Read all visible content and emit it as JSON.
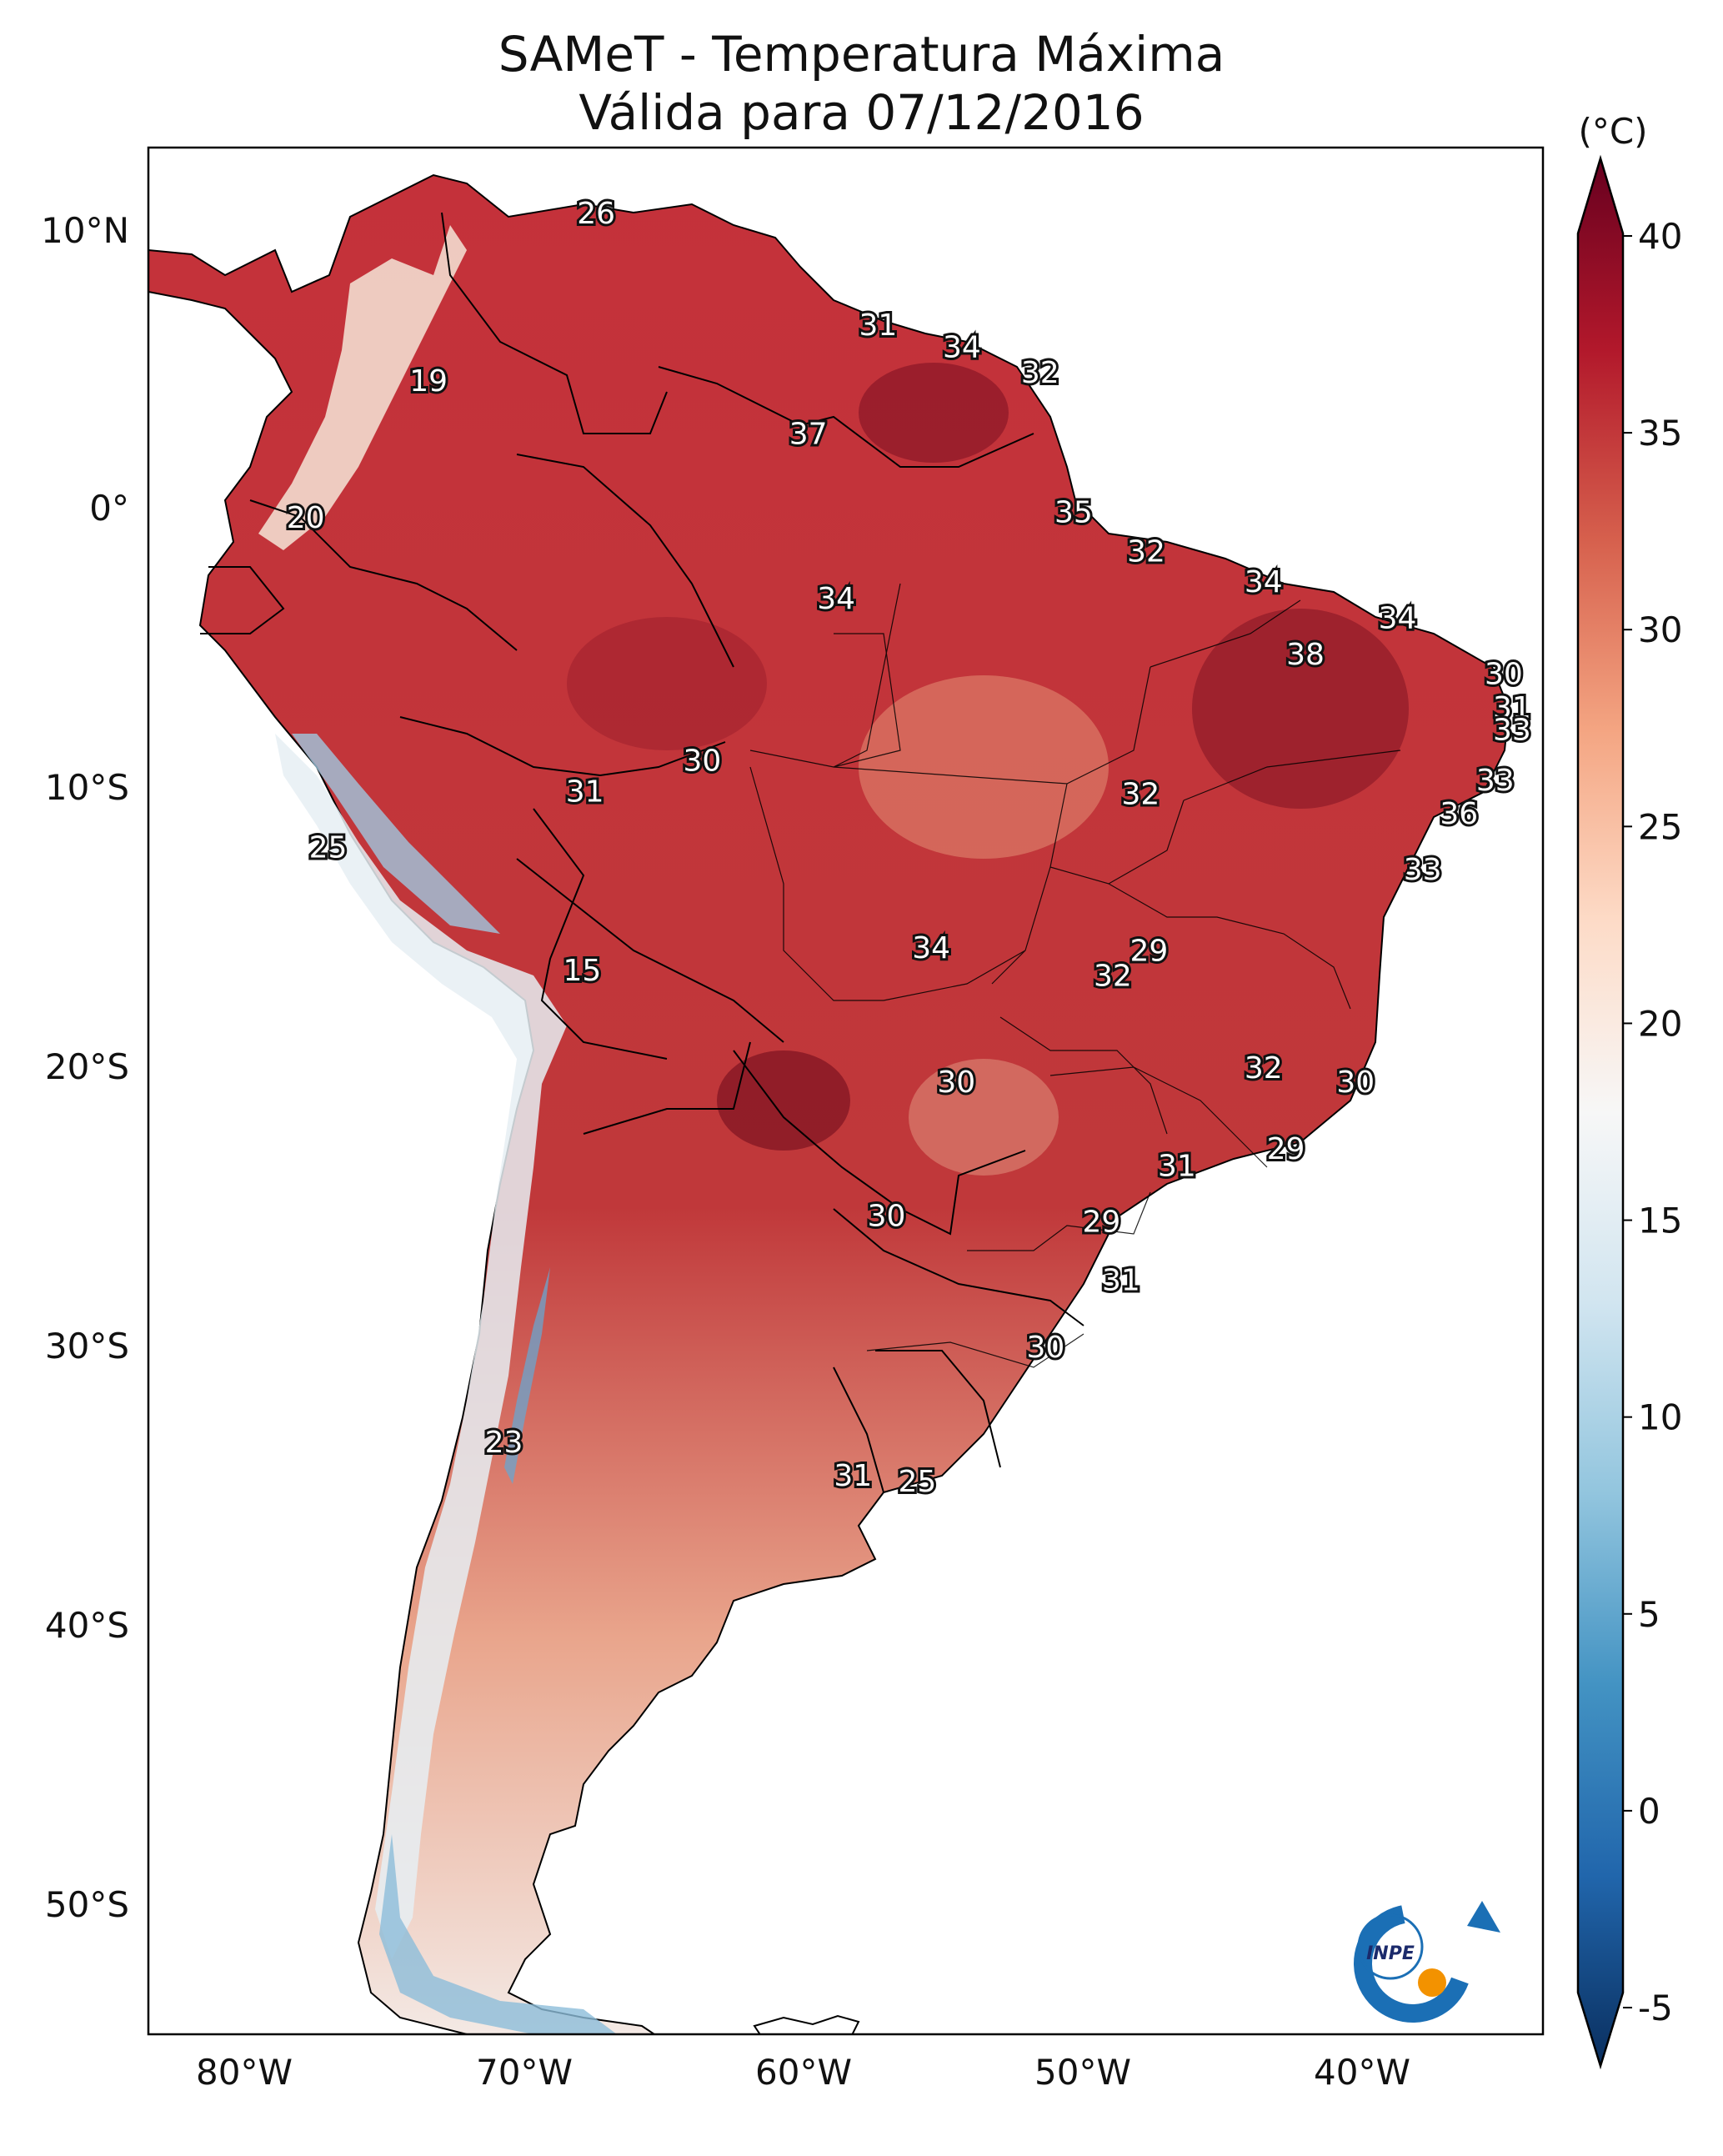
{
  "title": {
    "line1": "SAMeT - Temperatura Máxima",
    "line2": "Válida para 07/12/2016"
  },
  "map": {
    "lat_ticks": [
      "10°N",
      "0°",
      "10°S",
      "20°S",
      "30°S",
      "40°S",
      "50°S"
    ],
    "lon_ticks": [
      "80°W",
      "70°W",
      "60°W",
      "50°W",
      "40°W"
    ],
    "values": [
      {
        "label": "26",
        "lon": -67.4,
        "lat": 10.6
      },
      {
        "label": "19",
        "lon": -73.4,
        "lat": 4.6
      },
      {
        "label": "31",
        "lon": -57.3,
        "lat": 6.6
      },
      {
        "label": "34",
        "lon": -54.3,
        "lat": 5.8
      },
      {
        "label": "32",
        "lon": -51.5,
        "lat": 4.9
      },
      {
        "label": "37",
        "lon": -59.8,
        "lat": 2.7
      },
      {
        "label": "20",
        "lon": -77.8,
        "lat": -0.3
      },
      {
        "label": "35",
        "lon": -50.3,
        "lat": -0.1
      },
      {
        "label": "32",
        "lon": -47.7,
        "lat": -1.5
      },
      {
        "label": "34",
        "lon": -43.5,
        "lat": -2.6
      },
      {
        "label": "34",
        "lon": -58.8,
        "lat": -3.2
      },
      {
        "label": "34",
        "lon": -38.7,
        "lat": -3.9
      },
      {
        "label": "38",
        "lon": -42.0,
        "lat": -5.2
      },
      {
        "label": "30",
        "lon": -34.9,
        "lat": -5.9
      },
      {
        "label": "31",
        "lon": -34.6,
        "lat": -7.1
      },
      {
        "label": "33",
        "lon": -34.6,
        "lat": -7.9
      },
      {
        "label": "30",
        "lon": -63.6,
        "lat": -9.0
      },
      {
        "label": "31",
        "lon": -67.8,
        "lat": -10.1
      },
      {
        "label": "32",
        "lon": -47.9,
        "lat": -10.2
      },
      {
        "label": "33",
        "lon": -35.2,
        "lat": -9.7
      },
      {
        "label": "36",
        "lon": -36.5,
        "lat": -10.9
      },
      {
        "label": "25",
        "lon": -77.0,
        "lat": -12.1
      },
      {
        "label": "33",
        "lon": -37.8,
        "lat": -12.9
      },
      {
        "label": "34",
        "lon": -55.4,
        "lat": -15.7
      },
      {
        "label": "29",
        "lon": -47.6,
        "lat": -15.8
      },
      {
        "label": "32",
        "lon": -48.9,
        "lat": -16.7
      },
      {
        "label": "15",
        "lon": -67.9,
        "lat": -16.5
      },
      {
        "label": "32",
        "lon": -43.5,
        "lat": -20.0
      },
      {
        "label": "30",
        "lon": -54.5,
        "lat": -20.5
      },
      {
        "label": "30",
        "lon": -40.2,
        "lat": -20.5
      },
      {
        "label": "29",
        "lon": -42.7,
        "lat": -22.9
      },
      {
        "label": "31",
        "lon": -46.6,
        "lat": -23.5
      },
      {
        "label": "30",
        "lon": -57.0,
        "lat": -25.3
      },
      {
        "label": "29",
        "lon": -49.3,
        "lat": -25.5
      },
      {
        "label": "31",
        "lon": -48.6,
        "lat": -27.6
      },
      {
        "label": "30",
        "lon": -51.3,
        "lat": -30.0
      },
      {
        "label": "23",
        "lon": -70.7,
        "lat": -33.4
      },
      {
        "label": "31",
        "lon": -58.2,
        "lat": -34.6
      },
      {
        "label": "25",
        "lon": -55.9,
        "lat": -34.8
      }
    ]
  },
  "colorbar": {
    "unit": "(°C)",
    "ticks": [
      "40",
      "35",
      "30",
      "25",
      "20",
      "15",
      "10",
      "5",
      "0",
      "-5"
    ],
    "tick_values": [
      40,
      35,
      30,
      25,
      20,
      15,
      10,
      5,
      0,
      -5
    ],
    "range": [
      -5,
      40
    ],
    "colors": [
      "#0a2f5f",
      "#2166ac",
      "#4393c3",
      "#92c5de",
      "#d1e5f0",
      "#f7f7f7",
      "#fddbc7",
      "#f4a582",
      "#d6604d",
      "#b2182b",
      "#67001f"
    ]
  },
  "logo": {
    "text": "INPE",
    "ring_color": "#1b6fb5",
    "dot_color": "#f39200"
  }
}
